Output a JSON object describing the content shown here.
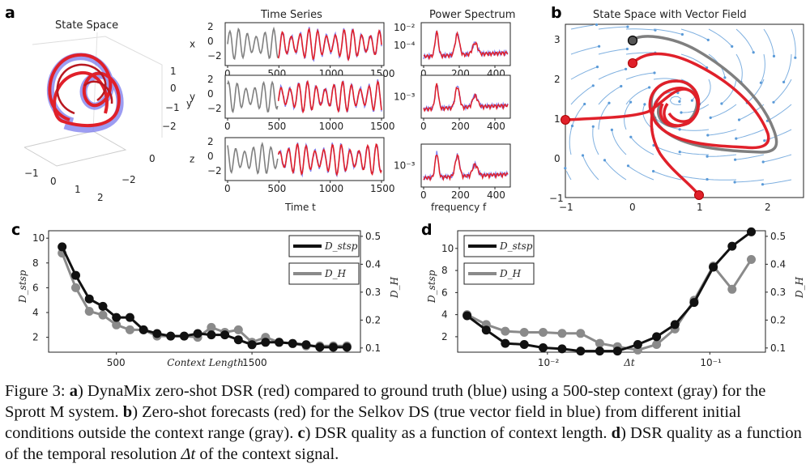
{
  "panel_labels": {
    "a": "a",
    "b": "b",
    "c": "c",
    "d": "d"
  },
  "panel_a": {
    "state_space": {
      "title": "State Space",
      "ticks_x": [
        "−1",
        "0",
        "1",
        "2"
      ],
      "ticks_y": [
        "−2",
        "0"
      ],
      "ticks_z": [
        "1",
        "0",
        "−1",
        "−2"
      ],
      "z_label": "y"
    },
    "time_series": {
      "title": "Time Series",
      "xlabel": "Time t",
      "rows": [
        {
          "var": "x",
          "yticks": [
            "2",
            "0",
            "−2"
          ]
        },
        {
          "var": "y",
          "yticks": [
            "2",
            "0",
            "−2"
          ]
        },
        {
          "var": "z",
          "yticks": [
            "2",
            "0",
            "−2"
          ]
        }
      ],
      "xticks": [
        "0",
        "500",
        "1000",
        "1500"
      ]
    },
    "power_spectrum": {
      "title": "Power Spectrum",
      "xlabel": "frequency f",
      "rows": [
        {
          "yticks": [
            "10⁻²",
            "10⁻⁴"
          ]
        },
        {
          "yticks": [
            "10⁻³"
          ]
        },
        {
          "yticks": [
            "10⁻³"
          ]
        }
      ],
      "xticks": [
        "0",
        "200",
        "400"
      ]
    }
  },
  "panel_b": {
    "title": "State Space with Vector Field",
    "xticks": [
      "−1",
      "0",
      "1",
      "2"
    ],
    "yticks": [
      "3",
      "2",
      "1",
      "0",
      "−1"
    ]
  },
  "chart_data": [
    {
      "type": "line",
      "panel": "c",
      "xlabel": "Context Length",
      "xticks": [
        "500",
        "1500"
      ],
      "ylabel_left": "D_stsp",
      "ylabel_right": "D_H",
      "yticks_left": [
        "10",
        "8",
        "6",
        "4",
        "2"
      ],
      "yticks_right": [
        "0.5",
        "0.4",
        "0.3",
        "0.2",
        "0.1"
      ],
      "ylim_left": [
        0.8,
        10.6
      ],
      "ylim_right": [
        0.085,
        0.52
      ],
      "xlim": [
        0,
        2300
      ],
      "x": [
        100,
        200,
        300,
        400,
        500,
        600,
        700,
        800,
        900,
        1000,
        1100,
        1200,
        1300,
        1400,
        1500,
        1600,
        1700,
        1800,
        1900,
        2000,
        2100,
        2200
      ],
      "series": [
        {
          "name": "D_stsp",
          "axis": "left",
          "color": "#111111",
          "values": [
            9.3,
            7.0,
            5.1,
            4.5,
            3.6,
            3.6,
            2.6,
            2.3,
            2.1,
            2.1,
            2.3,
            2.2,
            2.2,
            1.8,
            1.4,
            1.6,
            1.6,
            1.5,
            1.4,
            1.2,
            1.2,
            1.2
          ]
        },
        {
          "name": "D_H",
          "axis": "left",
          "color": "#8a8a8a",
          "values": [
            8.8,
            6.0,
            4.1,
            3.8,
            3.0,
            2.6,
            2.6,
            2.1,
            2.1,
            2.1,
            2.0,
            2.8,
            2.4,
            2.6,
            1.6,
            2.0,
            1.6,
            1.5,
            1.3,
            1.3,
            1.3,
            1.3
          ]
        }
      ],
      "legend": [
        "D_stsp",
        "D_H"
      ],
      "legend_position": "top-right"
    },
    {
      "type": "line",
      "panel": "d",
      "xlabel": "Δt",
      "xscale": "log",
      "xticks": [
        "10⁻²",
        "10⁻¹"
      ],
      "ylabel_left": "D_stsp",
      "ylabel_right": "D_H",
      "yticks_left": [
        "10",
        "8",
        "6",
        "4",
        "2"
      ],
      "yticks_right": [
        "0.5",
        "0.4",
        "0.3",
        "0.2",
        "0.1"
      ],
      "ylim_left": [
        0.6,
        11.6
      ],
      "ylim_right": [
        0.085,
        0.52
      ],
      "xlim": [
        0.0028,
        0.22
      ],
      "x": [
        0.0032,
        0.0042,
        0.0055,
        0.0072,
        0.0094,
        0.0123,
        0.016,
        0.021,
        0.027,
        0.036,
        0.047,
        0.061,
        0.08,
        0.105,
        0.137,
        0.18
      ],
      "series": [
        {
          "name": "D_stsp",
          "axis": "left",
          "color": "#111111",
          "values": [
            3.9,
            2.6,
            1.4,
            1.3,
            1.0,
            0.9,
            0.7,
            0.7,
            0.7,
            1.3,
            2.0,
            3.1,
            5.1,
            8.3,
            10.2,
            11.5
          ]
        },
        {
          "name": "D_H",
          "axis": "left",
          "color": "#8a8a8a",
          "values": [
            4.0,
            3.1,
            2.5,
            2.4,
            2.4,
            2.3,
            2.3,
            1.4,
            1.1,
            0.8,
            1.3,
            2.7,
            5.3,
            8.4,
            6.3,
            9.0
          ]
        }
      ],
      "legend": [
        "D_stsp",
        "D_H"
      ],
      "legend_position": "top-left"
    }
  ],
  "caption": {
    "prefix": "Figure 3: ",
    "a_label": "a",
    "a_text": ") DynaMix zero-shot DSR (red) compared to ground truth (blue) using a 500-step context (gray) for the Sprott M system. ",
    "b_label": "b",
    "b_text": ") Zero-shot forecasts (red) for the Selkov DS (true vector field in blue) from different initial conditions outside the context range (gray). ",
    "c_label": "c",
    "c_text": ") DSR quality as a function of context length. ",
    "d_label": "d",
    "d_text1": ") DSR quality as a function of the temporal resolution ",
    "d_math": "Δt",
    "d_text2": " of the context signal."
  }
}
